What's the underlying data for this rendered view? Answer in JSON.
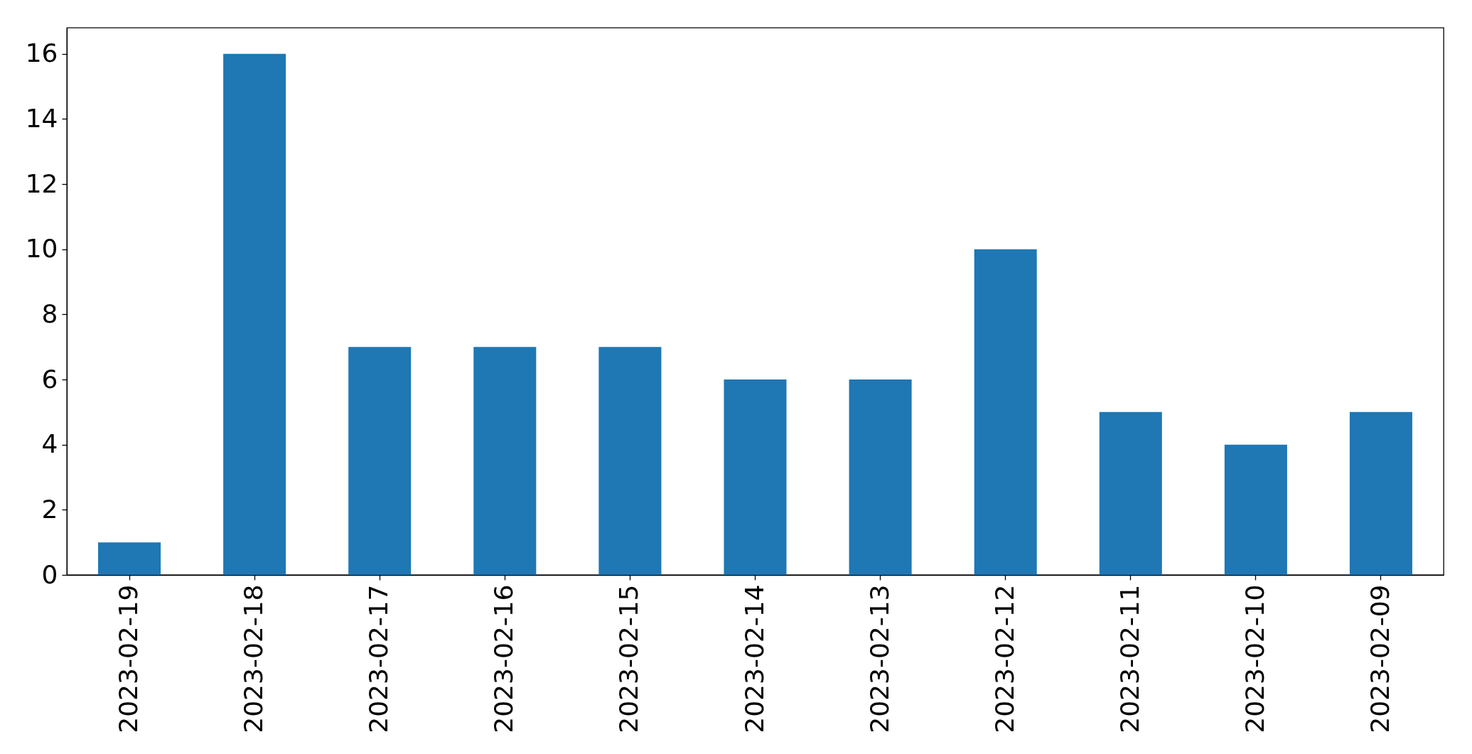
{
  "chart_data": {
    "type": "bar",
    "categories": [
      "2023-02-19",
      "2023-02-18",
      "2023-02-17",
      "2023-02-16",
      "2023-02-15",
      "2023-02-14",
      "2023-02-13",
      "2023-02-12",
      "2023-02-11",
      "2023-02-10",
      "2023-02-09"
    ],
    "values": [
      1,
      16,
      7,
      7,
      7,
      6,
      6,
      10,
      5,
      4,
      5
    ],
    "color": "#1f77b4",
    "ylim": [
      0,
      16.8
    ],
    "yticks": [
      0,
      2,
      4,
      6,
      8,
      10,
      12,
      14,
      16
    ],
    "grid": false
  }
}
